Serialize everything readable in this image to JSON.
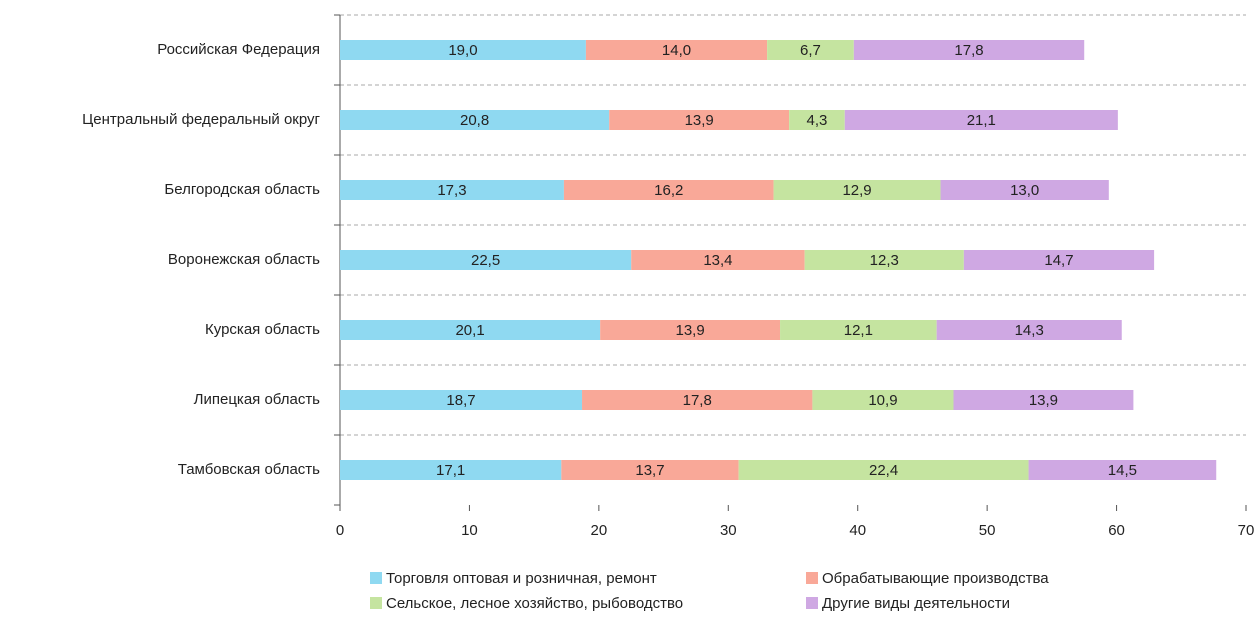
{
  "chart_data": {
    "type": "stacked-barh",
    "categories": [
      "Российская Федерация",
      "Центральный федеральный округ",
      "Белгородская область",
      "Воронежская область",
      "Курская область",
      "Липецкая область",
      "Тамбовская область"
    ],
    "series": [
      {
        "name": "Торговля оптовая и розничная, ремонт",
        "color": "#8fd9f1",
        "values": [
          19.0,
          20.8,
          17.3,
          22.5,
          20.1,
          18.7,
          17.1
        ],
        "value_labels": [
          "19,0",
          "20,8",
          "17,3",
          "22,5",
          "20,1",
          "18,7",
          "17,1"
        ]
      },
      {
        "name": "Обрабатывающие производства",
        "color": "#f9a898",
        "values": [
          14.0,
          13.9,
          16.2,
          13.4,
          13.9,
          17.8,
          13.7
        ],
        "value_labels": [
          "14,0",
          "13,9",
          "16,2",
          "13,4",
          "13,9",
          "17,8",
          "13,7"
        ]
      },
      {
        "name": "Сельское, лесное хозяйство, рыбоводство",
        "color": "#c5e4a0",
        "values": [
          6.7,
          4.3,
          12.9,
          12.3,
          12.1,
          10.9,
          22.4
        ],
        "value_labels": [
          "6,7",
          "4,3",
          "12,9",
          "12,3",
          "12,1",
          "10,9",
          "22,4"
        ]
      },
      {
        "name": "Другие виды деятельности",
        "color": "#cfa8e3",
        "values": [
          17.8,
          21.1,
          13.0,
          14.7,
          14.3,
          13.9,
          14.5
        ],
        "value_labels": [
          "17,8",
          "21,1",
          "13,0",
          "14,7",
          "14,3",
          "13,9",
          "14,5"
        ]
      }
    ],
    "xlim": [
      0,
      70
    ],
    "xticks": [
      0,
      10,
      20,
      30,
      40,
      50,
      60,
      70
    ]
  }
}
